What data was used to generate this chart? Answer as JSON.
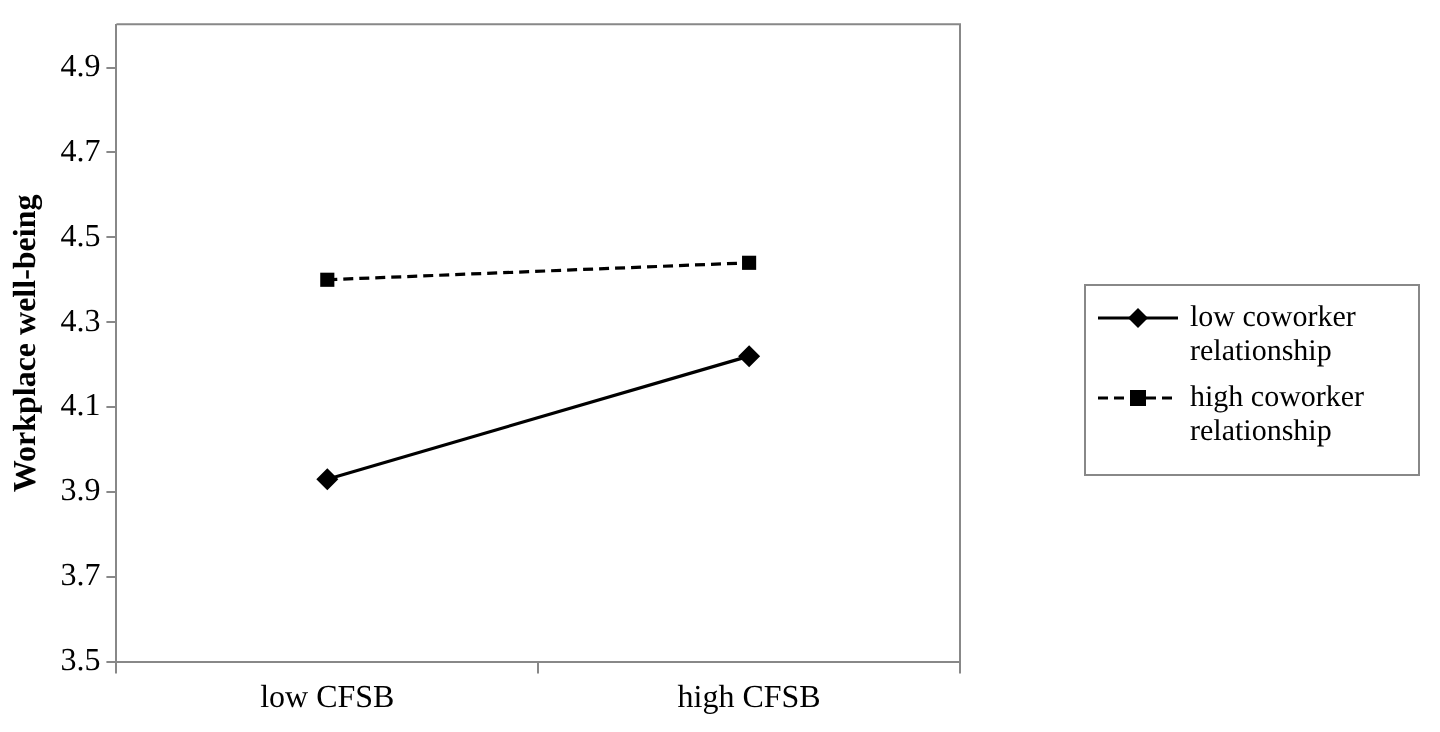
{
  "chart_data": {
    "type": "line",
    "ylabel": "Workplace well-being",
    "categories": [
      "low CFSB",
      "high CFSB"
    ],
    "series": [
      {
        "name": "low coworker relationship",
        "color": "#000000",
        "values": [
          3.93,
          4.22
        ],
        "marker": "diamond",
        "line_style": "solid"
      },
      {
        "name": "high coworker relationship",
        "color": "#000000",
        "values": [
          4.4,
          4.44
        ],
        "marker": "square",
        "line_style": "dashed"
      }
    ],
    "ylim": [
      3.5,
      5.0
    ],
    "yticks": [
      3.5,
      3.7,
      3.9,
      4.1,
      4.3,
      4.5,
      4.7,
      4.9
    ],
    "grid": false,
    "legend": "right"
  }
}
